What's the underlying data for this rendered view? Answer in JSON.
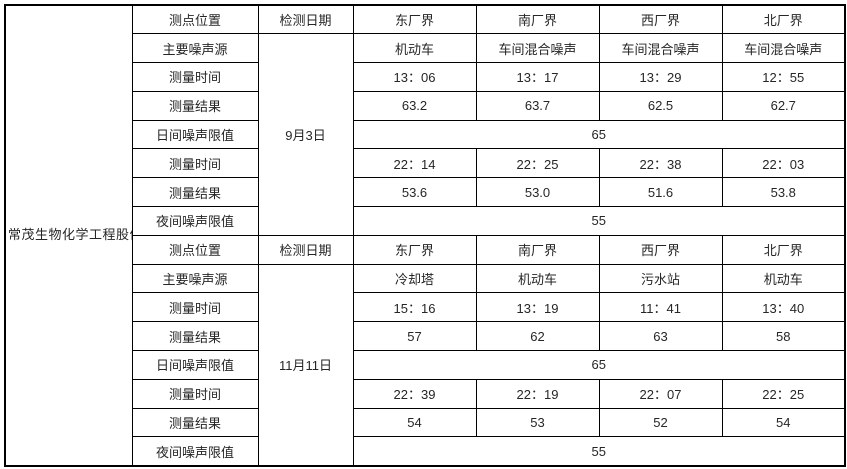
{
  "company": "常茂生物化学工程股份有限公司",
  "row_labels": {
    "point": "测点位置",
    "date_header": "检测日期",
    "source": "主要噪声源",
    "time": "测量时间",
    "result": "测量结果",
    "day_limit": "日间噪声限值",
    "night_limit": "夜间噪声限值"
  },
  "locations": [
    "东厂界",
    "南厂界",
    "西厂界",
    "北厂界"
  ],
  "blocks": [
    {
      "date": "9月3日",
      "sources": [
        "机动车",
        "车间混合噪声",
        "车间混合噪声",
        "车间混合噪声"
      ],
      "day_times": [
        "13：06",
        "13：17",
        "13：29",
        "12：55"
      ],
      "day_results": [
        "63.2",
        "63.7",
        "62.5",
        "62.7"
      ],
      "day_limit": "65",
      "night_times": [
        "22：14",
        "22：25",
        "22：38",
        "22：03"
      ],
      "night_results": [
        "53.6",
        "53.0",
        "51.6",
        "53.8"
      ],
      "night_limit": "55"
    },
    {
      "date": "11月11日",
      "sources": [
        "冷却塔",
        "机动车",
        "污水站",
        "机动车"
      ],
      "day_times": [
        "15：16",
        "13：19",
        "11：41",
        "13：40"
      ],
      "day_results": [
        "57",
        "62",
        "63",
        "58"
      ],
      "day_limit": "65",
      "night_times": [
        "22：39",
        "22：19",
        "22：07",
        "22：25"
      ],
      "night_results": [
        "54",
        "53",
        "52",
        "54"
      ],
      "night_limit": "55"
    }
  ],
  "colors": {
    "border": "#000000",
    "text": "#262626",
    "background": "#ffffff"
  }
}
